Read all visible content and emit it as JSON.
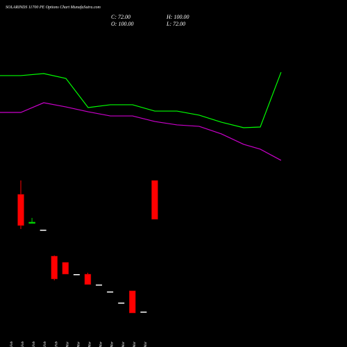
{
  "chart_data": [
    {
      "type": "candlestick",
      "title": "SOLARINDS 11700 PE Options Chart MunafaSutra.com",
      "ohlc_labels": [
        "C: 72.00",
        "H: 100.00",
        "O: 100.00",
        "L: 72.00"
      ],
      "categories": [
        "19 Feb",
        "23 Feb",
        "25 Feb",
        "26 Feb",
        "27 Feb",
        "02 Mar",
        "04 Mar",
        "05 Mar",
        "06 Mar",
        "10 Mar",
        "11 Mar",
        "19 Mar",
        "23 Mar"
      ],
      "open": [
        90,
        69,
        64.5,
        45.5,
        41,
        32.5,
        32.5,
        25,
        20,
        12,
        20.5,
        5.5,
        100
      ],
      "high": [
        100,
        73,
        64.5,
        46,
        41,
        32.5,
        33.5,
        25,
        20,
        12,
        20.5,
        5.5,
        100
      ],
      "low": [
        65,
        69,
        64.5,
        28,
        32.5,
        32.5,
        25,
        25,
        20,
        12,
        4.5,
        5.5,
        72
      ],
      "close": [
        67.5,
        70,
        64.5,
        29,
        32.5,
        32.5,
        25,
        25,
        20,
        12,
        4.5,
        5.5,
        72
      ],
      "up_color": "#00cc00",
      "down_color": "#ff0000",
      "ylim": [
        0,
        100
      ]
    },
    {
      "type": "line",
      "x": [
        0,
        30,
        63,
        95,
        127,
        159,
        191,
        223,
        255,
        287,
        319,
        351,
        375,
        405
      ],
      "xlim": [
        0,
        500
      ],
      "ylim": [
        0,
        100
      ],
      "series": [
        {
          "color": "#00ff00",
          "values": [
            93.6,
            93.6,
            95.7,
            90.7,
            60.7,
            63.6,
            63.6,
            57.1,
            57.1,
            52.9,
            45.7,
            40,
            40.7,
            97.1
          ]
        },
        {
          "color": "#cc00cc",
          "values": [
            55.7,
            55.7,
            65.7,
            61.4,
            56.4,
            52.1,
            52.1,
            46.4,
            42.9,
            41.4,
            33.6,
            22.9,
            17.9,
            6.4
          ]
        }
      ]
    }
  ]
}
